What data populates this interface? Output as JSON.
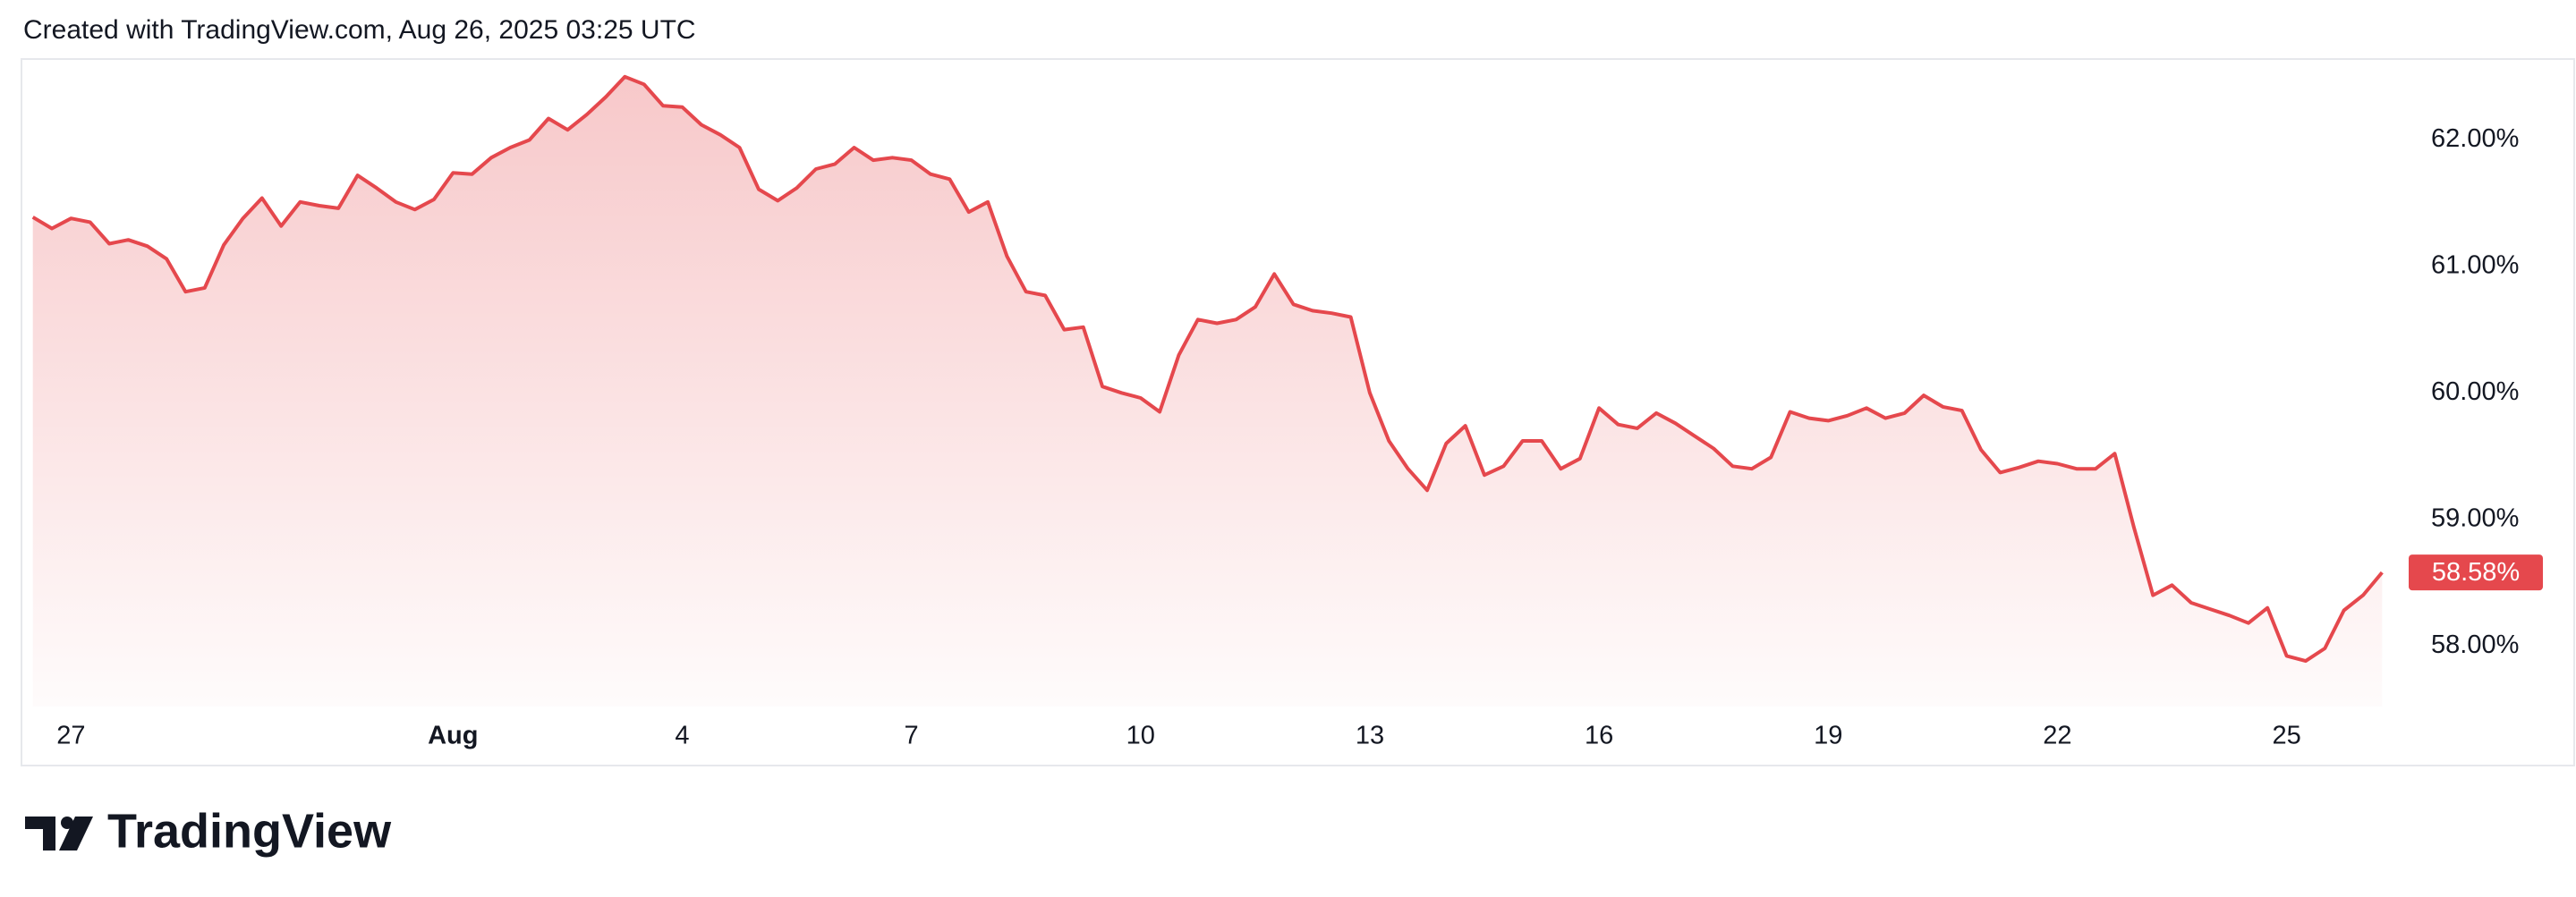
{
  "header": "Created with TradingView.com, Aug 26, 2025 03:25 UTC",
  "brand": "TradingView",
  "chart_data": {
    "type": "line",
    "x": [
      "2025-07-26T12:00",
      "2025-07-26T18:00",
      "2025-07-27T00:00",
      "2025-07-27T06:00",
      "2025-07-27T12:00",
      "2025-07-27T18:00",
      "2025-07-28T00:00",
      "2025-07-28T06:00",
      "2025-07-28T12:00",
      "2025-07-28T18:00",
      "2025-07-29T00:00",
      "2025-07-29T06:00",
      "2025-07-29T12:00",
      "2025-07-29T18:00",
      "2025-07-30T00:00",
      "2025-07-30T06:00",
      "2025-07-30T12:00",
      "2025-07-30T18:00",
      "2025-07-31T00:00",
      "2025-07-31T06:00",
      "2025-07-31T12:00",
      "2025-07-31T18:00",
      "2025-08-01T00:00",
      "2025-08-01T06:00",
      "2025-08-01T12:00",
      "2025-08-01T18:00",
      "2025-08-02T00:00",
      "2025-08-02T06:00",
      "2025-08-02T12:00",
      "2025-08-02T18:00",
      "2025-08-03T00:00",
      "2025-08-03T06:00",
      "2025-08-03T12:00",
      "2025-08-03T18:00",
      "2025-08-04T00:00",
      "2025-08-04T06:00",
      "2025-08-04T12:00",
      "2025-08-04T18:00",
      "2025-08-05T00:00",
      "2025-08-05T06:00",
      "2025-08-05T12:00",
      "2025-08-05T18:00",
      "2025-08-06T00:00",
      "2025-08-06T06:00",
      "2025-08-06T12:00",
      "2025-08-06T18:00",
      "2025-08-07T00:00",
      "2025-08-07T06:00",
      "2025-08-07T12:00",
      "2025-08-07T18:00",
      "2025-08-08T00:00",
      "2025-08-08T06:00",
      "2025-08-08T12:00",
      "2025-08-08T18:00",
      "2025-08-09T00:00",
      "2025-08-09T06:00",
      "2025-08-09T12:00",
      "2025-08-09T18:00",
      "2025-08-10T00:00",
      "2025-08-10T06:00",
      "2025-08-10T12:00",
      "2025-08-10T18:00",
      "2025-08-11T00:00",
      "2025-08-11T06:00",
      "2025-08-11T12:00",
      "2025-08-11T18:00",
      "2025-08-12T00:00",
      "2025-08-12T06:00",
      "2025-08-12T12:00",
      "2025-08-12T18:00",
      "2025-08-13T00:00",
      "2025-08-13T06:00",
      "2025-08-13T12:00",
      "2025-08-13T18:00",
      "2025-08-14T00:00",
      "2025-08-14T06:00",
      "2025-08-14T12:00",
      "2025-08-14T18:00",
      "2025-08-15T00:00",
      "2025-08-15T06:00",
      "2025-08-15T12:00",
      "2025-08-15T18:00",
      "2025-08-16T00:00",
      "2025-08-16T06:00",
      "2025-08-16T12:00",
      "2025-08-16T18:00",
      "2025-08-17T00:00",
      "2025-08-17T06:00",
      "2025-08-17T12:00",
      "2025-08-17T18:00",
      "2025-08-18T00:00",
      "2025-08-18T06:00",
      "2025-08-18T12:00",
      "2025-08-18T18:00",
      "2025-08-19T00:00",
      "2025-08-19T06:00",
      "2025-08-19T12:00",
      "2025-08-19T18:00",
      "2025-08-20T00:00",
      "2025-08-20T06:00",
      "2025-08-20T12:00",
      "2025-08-20T18:00",
      "2025-08-21T00:00",
      "2025-08-21T06:00",
      "2025-08-21T12:00",
      "2025-08-21T18:00",
      "2025-08-22T00:00",
      "2025-08-22T06:00",
      "2025-08-22T12:00",
      "2025-08-22T18:00",
      "2025-08-23T00:00",
      "2025-08-23T06:00",
      "2025-08-23T12:00",
      "2025-08-23T18:00",
      "2025-08-24T00:00",
      "2025-08-24T06:00",
      "2025-08-24T12:00",
      "2025-08-24T18:00",
      "2025-08-25T00:00",
      "2025-08-25T06:00",
      "2025-08-25T12:00",
      "2025-08-25T18:00",
      "2025-08-26T00:00",
      "2025-08-26T06:00"
    ],
    "values": [
      61.39,
      61.3,
      61.38,
      61.35,
      61.18,
      61.21,
      61.16,
      61.06,
      60.8,
      60.83,
      61.17,
      61.38,
      61.54,
      61.32,
      61.51,
      61.48,
      61.46,
      61.72,
      61.62,
      61.51,
      61.45,
      61.53,
      61.74,
      61.73,
      61.86,
      61.94,
      62.0,
      62.17,
      62.08,
      62.2,
      62.34,
      62.5,
      62.44,
      62.27,
      62.26,
      62.12,
      62.04,
      61.94,
      61.61,
      61.52,
      61.62,
      61.77,
      61.81,
      61.94,
      61.84,
      61.86,
      61.84,
      61.73,
      61.69,
      61.43,
      61.51,
      61.08,
      60.8,
      60.77,
      60.5,
      60.52,
      60.05,
      60.0,
      59.96,
      59.85,
      60.3,
      60.58,
      60.55,
      60.58,
      60.68,
      60.94,
      60.7,
      60.65,
      60.63,
      60.6,
      60.0,
      59.62,
      59.4,
      59.23,
      59.6,
      59.74,
      59.35,
      59.42,
      59.62,
      59.62,
      59.4,
      59.48,
      59.88,
      59.75,
      59.72,
      59.84,
      59.76,
      59.66,
      59.56,
      59.42,
      59.4,
      59.49,
      59.85,
      59.8,
      59.78,
      59.82,
      59.88,
      59.8,
      59.84,
      59.98,
      59.89,
      59.86,
      59.55,
      59.37,
      59.41,
      59.46,
      59.44,
      59.4,
      59.4,
      59.52,
      58.94,
      58.4,
      58.48,
      58.34,
      58.29,
      58.24,
      58.18,
      58.3,
      57.92,
      57.88,
      57.98,
      58.28,
      58.4,
      58.58
    ],
    "color": "#e5484d",
    "xlim": [
      "2025-07-26T09:00",
      "2025-08-26T09:00"
    ],
    "xticks": [
      {
        "value": "2025-07-27T00:00",
        "label": "27"
      },
      {
        "value": "2025-08-01T00:00",
        "label": "Aug"
      },
      {
        "value": "2025-08-04T00:00",
        "label": "4"
      },
      {
        "value": "2025-08-07T00:00",
        "label": "7"
      },
      {
        "value": "2025-08-10T00:00",
        "label": "10"
      },
      {
        "value": "2025-08-13T00:00",
        "label": "13"
      },
      {
        "value": "2025-08-16T00:00",
        "label": "16"
      },
      {
        "value": "2025-08-19T00:00",
        "label": "19"
      },
      {
        "value": "2025-08-22T00:00",
        "label": "22"
      },
      {
        "value": "2025-08-25T00:00",
        "label": "25"
      }
    ],
    "ylim": [
      57.52,
      62.64
    ],
    "yticks": [
      {
        "value": 58,
        "label": "58.00%"
      },
      {
        "value": 59,
        "label": "59.00%"
      },
      {
        "value": 60,
        "label": "60.00%"
      },
      {
        "value": 61,
        "label": "61.00%"
      },
      {
        "value": 62,
        "label": "62.00%"
      }
    ],
    "price_label": {
      "value": 58.58,
      "label": "58.58%"
    },
    "grid": false
  }
}
